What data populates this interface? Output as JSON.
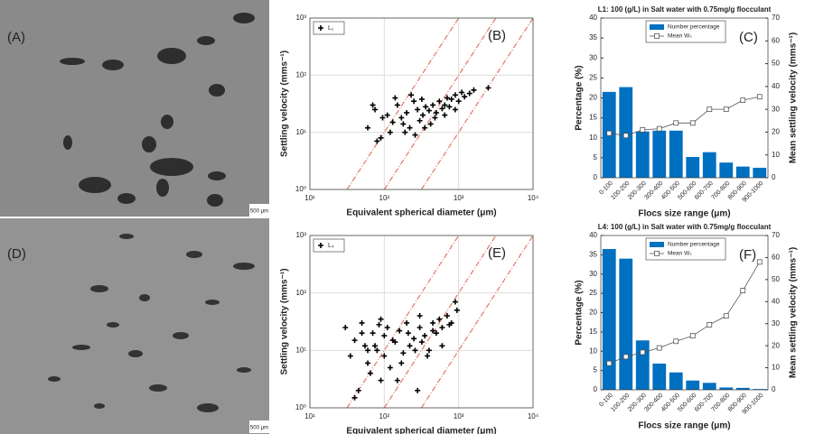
{
  "photos": [
    {
      "label": "(A)",
      "scale": "500 μm"
    },
    {
      "label": "(D)",
      "scale": "500 μm"
    }
  ],
  "chart_data": [
    {
      "type": "scatter",
      "panel_label": "(B)",
      "xlabel": "Equivalent spherical diameter (μm)",
      "ylabel": "Settling velocity (mms⁻¹)",
      "log_x": true,
      "log_y": true,
      "grid": true,
      "legend": "top-left",
      "xlim": [
        10,
        10000
      ],
      "ylim": [
        1,
        1000
      ],
      "xticks": [
        {
          "value": 10,
          "label": "10¹"
        },
        {
          "value": 100,
          "label": "10²"
        },
        {
          "value": 1000,
          "label": "10³"
        },
        {
          "value": 10000,
          "label": "10⁴"
        }
      ],
      "yticks": [
        {
          "value": 1,
          "label": "10⁰"
        },
        {
          "value": 10,
          "label": "10¹"
        },
        {
          "value": 100,
          "label": "10²"
        },
        {
          "value": 1000,
          "label": "10³"
        }
      ],
      "series": [
        {
          "name": "L₁",
          "color": "#000000",
          "x": [
            60,
            75,
            90,
            110,
            130,
            150,
            170,
            200,
            220,
            250,
            280,
            300,
            330,
            360,
            400,
            420,
            450,
            500,
            550,
            600,
            650,
            700,
            750,
            800,
            900,
            1000,
            1100,
            1200,
            1400,
            1600,
            2500,
            80,
            120,
            180,
            260,
            350,
            480,
            650,
            900,
            140,
            230,
            320,
            70,
            95,
            190
          ],
          "values": [
            12,
            25,
            8,
            20,
            15,
            30,
            18,
            22,
            12,
            35,
            25,
            16,
            20,
            28,
            24,
            14,
            30,
            22,
            35,
            26,
            30,
            40,
            28,
            38,
            45,
            35,
            50,
            42,
            48,
            55,
            60,
            7,
            10,
            14,
            9,
            12,
            18,
            20,
            25,
            40,
            45,
            38,
            30,
            18,
            10
          ]
        }
      ],
      "reference_lines": {
        "color": "#e07a6a",
        "lines": [
          {
            "x": [
              31.6,
              1000
            ],
            "y": [
              1,
              1000
            ]
          },
          {
            "x": [
              100,
              3162
            ],
            "y": [
              1,
              1000
            ]
          },
          {
            "x": [
              316,
              10000
            ],
            "y": [
              1,
              1000
            ]
          }
        ]
      }
    },
    {
      "type": "bar",
      "panel_label": "(C)",
      "title": "L1: 100 (g/L) in Salt water with 0.75mg/g flocculant",
      "xlabel": "Flocs size range (μm)",
      "ylabel": "Percentage (%)",
      "y2label": "Mean settling velocity (mms⁻¹)",
      "legend": "top",
      "categories": [
        "0-100",
        "100-200",
        "200-300",
        "300-400",
        "400-500",
        "500-600",
        "600-700",
        "700-800",
        "800-900",
        "900-1000"
      ],
      "ylim": [
        0,
        40
      ],
      "yticks": [
        0,
        5,
        10,
        15,
        20,
        25,
        30,
        35,
        40
      ],
      "y2lim": [
        0,
        70
      ],
      "y2ticks": [
        0,
        10,
        20,
        30,
        40,
        50,
        60,
        70
      ],
      "series": [
        {
          "name": "Number percentage",
          "color": "#0070c0",
          "values": [
            21.5,
            22.7,
            11.6,
            11.8,
            11.8,
            5.2,
            6.4,
            3.8,
            2.8,
            2.5
          ]
        },
        {
          "name": "Mean Wₛ",
          "type": "line",
          "axis": "y2",
          "color": "#555555",
          "values": [
            19.5,
            18.5,
            21,
            21.5,
            24,
            24,
            30,
            30,
            34,
            35.5
          ]
        }
      ]
    },
    {
      "type": "scatter",
      "panel_label": "(E)",
      "xlabel": "Equivalent spherical diameter (μm)",
      "ylabel": "Settling velocity (mms⁻¹)",
      "log_x": true,
      "log_y": true,
      "grid": true,
      "legend": "top-left",
      "xlim": [
        10,
        10000
      ],
      "ylim": [
        1,
        1000
      ],
      "xticks": [
        {
          "value": 10,
          "label": "10¹"
        },
        {
          "value": 100,
          "label": "10²"
        },
        {
          "value": 1000,
          "label": "10³"
        },
        {
          "value": 10000,
          "label": "10⁴"
        }
      ],
      "yticks": [
        {
          "value": 1,
          "label": "10⁰"
        },
        {
          "value": 10,
          "label": "10¹"
        },
        {
          "value": 100,
          "label": "10²"
        },
        {
          "value": 1000,
          "label": "10³"
        }
      ],
      "series": [
        {
          "name": "L₄",
          "color": "#000000",
          "x": [
            30,
            35,
            40,
            45,
            50,
            55,
            60,
            70,
            80,
            90,
            100,
            110,
            120,
            140,
            160,
            180,
            200,
            220,
            250,
            280,
            300,
            350,
            400,
            450,
            500,
            550,
            600,
            700,
            800,
            900,
            40,
            50,
            65,
            75,
            85,
            100,
            130,
            170,
            210,
            260,
            320,
            380,
            450,
            600,
            750,
            60,
            90,
            150,
            300,
            950
          ],
          "values": [
            25,
            8,
            15,
            2,
            30,
            12,
            6,
            20,
            10,
            3,
            18,
            25,
            5,
            14,
            22,
            9,
            30,
            12,
            16,
            2,
            25,
            18,
            10,
            30,
            20,
            35,
            25,
            40,
            30,
            70,
            1.5,
            20,
            4,
            12,
            28,
            8,
            15,
            6,
            20,
            10,
            14,
            8,
            22,
            12,
            28,
            10,
            35,
            3,
            40,
            50
          ]
        }
      ],
      "reference_lines": {
        "color": "#e07a6a",
        "lines": [
          {
            "x": [
              31.6,
              1000
            ],
            "y": [
              1,
              1000
            ]
          },
          {
            "x": [
              100,
              3162
            ],
            "y": [
              1,
              1000
            ]
          },
          {
            "x": [
              316,
              10000
            ],
            "y": [
              1,
              1000
            ]
          }
        ]
      }
    },
    {
      "type": "bar",
      "panel_label": "(F)",
      "title": "L4: 100 (g/L) in Salt water with 0.75mg/g flocculant",
      "xlabel": "Flocs size range (μm)",
      "ylabel": "Percentage (%)",
      "y2label": "Mean settling velocity (mms⁻¹)",
      "legend": "top",
      "categories": [
        "0-100",
        "100-200",
        "200-300",
        "300-400",
        "400-500",
        "500-600",
        "600-700",
        "700-800",
        "800-900",
        "900-1000"
      ],
      "ylim": [
        0,
        40
      ],
      "yticks": [
        0,
        5,
        10,
        15,
        20,
        25,
        30,
        35,
        40
      ],
      "y2lim": [
        0,
        70
      ],
      "y2ticks": [
        0,
        10,
        20,
        30,
        40,
        50,
        60,
        70
      ],
      "series": [
        {
          "name": "Number percentage",
          "color": "#0070c0",
          "values": [
            36.5,
            34,
            12.8,
            6.8,
            4.5,
            2.4,
            1.8,
            0.6,
            0.5,
            0.2
          ]
        },
        {
          "name": "Mean Wₛ",
          "type": "line",
          "axis": "y2",
          "color": "#555555",
          "values": [
            12,
            15,
            17,
            19,
            22,
            24.5,
            29.5,
            33.5,
            45,
            58
          ]
        }
      ]
    }
  ]
}
